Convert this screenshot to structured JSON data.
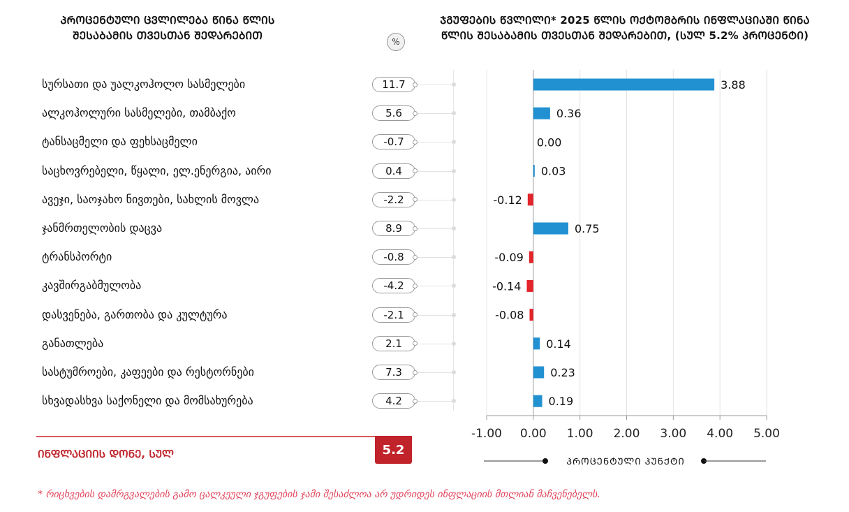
{
  "left_title": {
    "line1": "ᲞᲠᲝᲪᲔᲜᲢᲣᲚᲘ ᲪᲕᲚᲘᲚᲔᲑᲐ ᲬᲘᲜᲐ ᲬᲚᲘᲡ",
    "line2": "ᲨᲔᲡᲐᲑᲐᲛᲘᲡ ᲗᲕᲔᲡᲗᲐᲜ ᲨᲔᲓᲐᲠᲔᲑᲘᲗ"
  },
  "percent_badge": "%",
  "categories": [
    {
      "label": "სურსათი და უალკოჰოლო სასმელები",
      "yoy_change": "11.7"
    },
    {
      "label": "ალკოჰოლური სასმელები, თამბაქო",
      "yoy_change": "5.6"
    },
    {
      "label": "ტანსაცმელი და ფეხსაცმელი",
      "yoy_change": "-0.7"
    },
    {
      "label": "საცხოვრებელი, წყალი, ელ.ენერგია, აირი",
      "yoy_change": "0.4"
    },
    {
      "label": "ავეჯი, საოჯახო ნივთები, სახლის მოვლა",
      "yoy_change": "-2.2"
    },
    {
      "label": "ჯანმრთელობის დაცვა",
      "yoy_change": "8.9"
    },
    {
      "label": "ტრანსპორტი",
      "yoy_change": "-0.8"
    },
    {
      "label": "კავშირგაბმულობა",
      "yoy_change": "-4.2"
    },
    {
      "label": "დასვენება, გართობა და კულტურა",
      "yoy_change": "-2.1"
    },
    {
      "label": "განათლება",
      "yoy_change": "2.1"
    },
    {
      "label": "სასტუმროები, კაფეები და რესტორნები",
      "yoy_change": "7.3"
    },
    {
      "label": "სხვადასხვა საქონელი და მომსახურება",
      "yoy_change": "4.2"
    }
  ],
  "total": {
    "label": "ᲘᲜᲤᲚᲐᲪᲘᲘᲡ ᲓᲝᲜᲔ, ᲡᲣᲚ",
    "value": "5.2"
  },
  "footnote": "* რიცხვების დამრგვალების გამო ცალკეული ჯგუფების ჯამი შესაძლოა არ უდრიდეს ინფლაციის მთლიან მაჩვენებელს.",
  "colors": {
    "positive": "#2291d2",
    "negative": "#e3242b",
    "accent": "#c1232b"
  },
  "chart_data": {
    "type": "bar",
    "orientation": "horizontal",
    "title_line1": "ᲯᲒᲣᲤᲔᲑᲘᲡ ᲬᲕᲚᲘᲚᲘ* 2025 ᲬᲚᲘᲡ ᲝᲥᲢᲝᲛᲑᲠᲘᲡ ᲘᲜᲤᲚᲐᲪᲘᲐᲨᲘ ᲬᲘᲜᲐ",
    "title_line2": "ᲬᲚᲘᲡ ᲨᲔᲡᲐᲑᲐᲛᲘᲡ ᲗᲕᲔᲡᲗᲐᲜ ᲨᲔᲓᲐᲠᲔᲑᲘᲗ, (ᲡᲣᲚ 5.2% ᲞᲠᲝᲪᲔᲜᲢᲘ)",
    "values": [
      3.88,
      0.36,
      0.0,
      0.03,
      -0.12,
      0.75,
      -0.09,
      -0.14,
      -0.08,
      0.14,
      0.23,
      0.19
    ],
    "value_labels": [
      "3.88",
      "0.36",
      "0.00",
      "0.03",
      "-0.12",
      "0.75",
      "-0.09",
      "-0.14",
      "-0.08",
      "0.14",
      "0.23",
      "0.19"
    ],
    "xlim": [
      -1,
      5
    ],
    "xticks": [
      -1,
      0,
      1,
      2,
      3,
      4,
      5
    ],
    "xtick_labels": [
      "-1.00",
      "0.00",
      "1.00",
      "2.00",
      "3.00",
      "4.00",
      "5.00"
    ],
    "xlabel": "ᲞᲠᲝᲪᲔᲜᲢᲣᲚᲘ ᲞᲣᲜᲥᲢᲘ",
    "grid": true
  }
}
